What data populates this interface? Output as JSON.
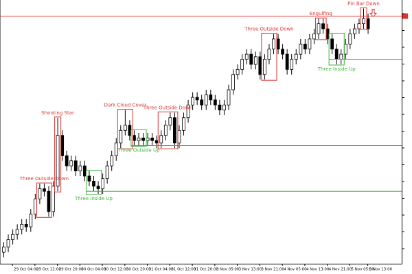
{
  "chart_data": {
    "type": "candlestick",
    "categories": [
      null,
      null,
      "29 Oct 04:00",
      null,
      null,
      null,
      null,
      "29 Oct 12:00",
      null,
      null,
      null,
      null,
      "29 Oct 20:00",
      null,
      null,
      null,
      null,
      "30 Oct 04:00",
      null,
      null,
      null,
      null,
      "30 Oct 12:00",
      null,
      null,
      null,
      null,
      "30 Oct 20:00",
      null,
      null,
      null,
      null,
      "31 Oct 04:00",
      null,
      null,
      null,
      null,
      "31 Oct 12:00",
      null,
      null,
      null,
      null,
      "31 Oct 20:00",
      null,
      null,
      null,
      null,
      "3 Nov 05:00",
      null,
      null,
      null,
      null,
      "3 Nov 13:00",
      null,
      null,
      null,
      null,
      "3 Nov 21:00",
      null,
      null,
      null,
      null,
      "4 Nov 05:00",
      null,
      null,
      null,
      null,
      "4 Nov 13:00",
      null,
      null,
      null,
      null,
      "4 Nov 21:00",
      null,
      null,
      null,
      null,
      "5 Nov 05:00",
      null,
      null,
      null,
      "5 Nov 13:00"
    ],
    "open": [
      2,
      4,
      7,
      9,
      11,
      13,
      12,
      17,
      23,
      27,
      26,
      18,
      28,
      48,
      40,
      36,
      38,
      34,
      36,
      32,
      30,
      28,
      27,
      31,
      36,
      40,
      45,
      50,
      52,
      48,
      46,
      47,
      46,
      47,
      46,
      45,
      48,
      52,
      55,
      45,
      50,
      55,
      60,
      63,
      62,
      60,
      64,
      62,
      60,
      58,
      60,
      66,
      72,
      74,
      78,
      80,
      76,
      79,
      72,
      78,
      82,
      86,
      82,
      80,
      74,
      78,
      80,
      84,
      82,
      86,
      88,
      92,
      90,
      86,
      82,
      78,
      80,
      84,
      88,
      90,
      92,
      94
    ],
    "high": [
      6,
      9,
      11,
      13,
      15,
      15,
      19,
      25,
      29,
      29,
      28,
      30,
      55,
      50,
      42,
      40,
      40,
      38,
      38,
      34,
      32,
      30,
      33,
      38,
      42,
      47,
      52,
      58,
      54,
      50,
      49,
      49,
      49,
      49,
      48,
      50,
      54,
      57,
      57,
      52,
      57,
      62,
      65,
      65,
      64,
      66,
      66,
      64,
      62,
      62,
      68,
      74,
      76,
      80,
      82,
      82,
      81,
      81,
      80,
      84,
      88,
      88,
      84,
      82,
      80,
      82,
      86,
      86,
      88,
      90,
      94,
      94,
      92,
      88,
      84,
      82,
      86,
      90,
      92,
      94,
      98,
      96
    ],
    "low": [
      0,
      2,
      5,
      7,
      9,
      10,
      10,
      15,
      21,
      24,
      16,
      16,
      26,
      38,
      34,
      34,
      32,
      32,
      30,
      28,
      26,
      25,
      25,
      29,
      34,
      38,
      43,
      48,
      46,
      44,
      44,
      44,
      44,
      44,
      43,
      43,
      46,
      50,
      43,
      43,
      48,
      53,
      58,
      60,
      58,
      58,
      60,
      58,
      56,
      56,
      58,
      64,
      70,
      72,
      76,
      74,
      74,
      70,
      70,
      76,
      80,
      80,
      78,
      72,
      72,
      76,
      78,
      80,
      80,
      84,
      86,
      88,
      84,
      80,
      76,
      76,
      78,
      82,
      86,
      88,
      90,
      88
    ],
    "close": [
      4,
      7,
      9,
      11,
      13,
      12,
      17,
      23,
      27,
      26,
      18,
      28,
      48,
      40,
      36,
      38,
      34,
      36,
      32,
      30,
      28,
      27,
      31,
      36,
      40,
      45,
      50,
      52,
      48,
      46,
      47,
      46,
      47,
      46,
      45,
      48,
      52,
      55,
      45,
      50,
      55,
      60,
      63,
      62,
      60,
      64,
      62,
      60,
      58,
      60,
      66,
      72,
      74,
      78,
      80,
      76,
      79,
      72,
      78,
      82,
      86,
      82,
      80,
      74,
      78,
      80,
      84,
      82,
      86,
      88,
      92,
      90,
      86,
      82,
      78,
      80,
      84,
      88,
      90,
      92,
      94,
      90
    ],
    "ylim": [
      -2,
      100
    ],
    "price_line": {
      "value": 95,
      "color": "#e03030"
    },
    "patterns": [
      {
        "text": "Three Outside Down",
        "color": "#e03030",
        "candles": [
          8,
          10
        ]
      },
      {
        "text": "Shooting Star",
        "color": "#e03030",
        "candles": [
          12,
          12
        ]
      },
      {
        "text": "Three Inside Up",
        "color": "#3cb43c",
        "candles": [
          19,
          21
        ],
        "level": 26
      },
      {
        "text": "Dark Cloud Cover",
        "color": "#e03030",
        "candles": [
          26,
          28
        ]
      },
      {
        "text": "Three Outside Up",
        "color": "#3cb43c",
        "candles": [
          29,
          31
        ],
        "level": 44
      },
      {
        "text": "Three Outside Down",
        "color": "#e03030",
        "candles": [
          35,
          38
        ]
      },
      {
        "text": "Three Outside Down",
        "color": "#e03030",
        "candles": [
          58,
          60
        ]
      },
      {
        "text": "Engulfing",
        "color": "#e03030",
        "candles": [
          70,
          71
        ]
      },
      {
        "text": "Pin Bar Down",
        "color": "#e03030",
        "candles": [
          80,
          80
        ]
      },
      {
        "text": "Three Inside Up",
        "color": "#3cb43c",
        "candles": [
          73,
          75
        ],
        "level": 78
      }
    ]
  }
}
